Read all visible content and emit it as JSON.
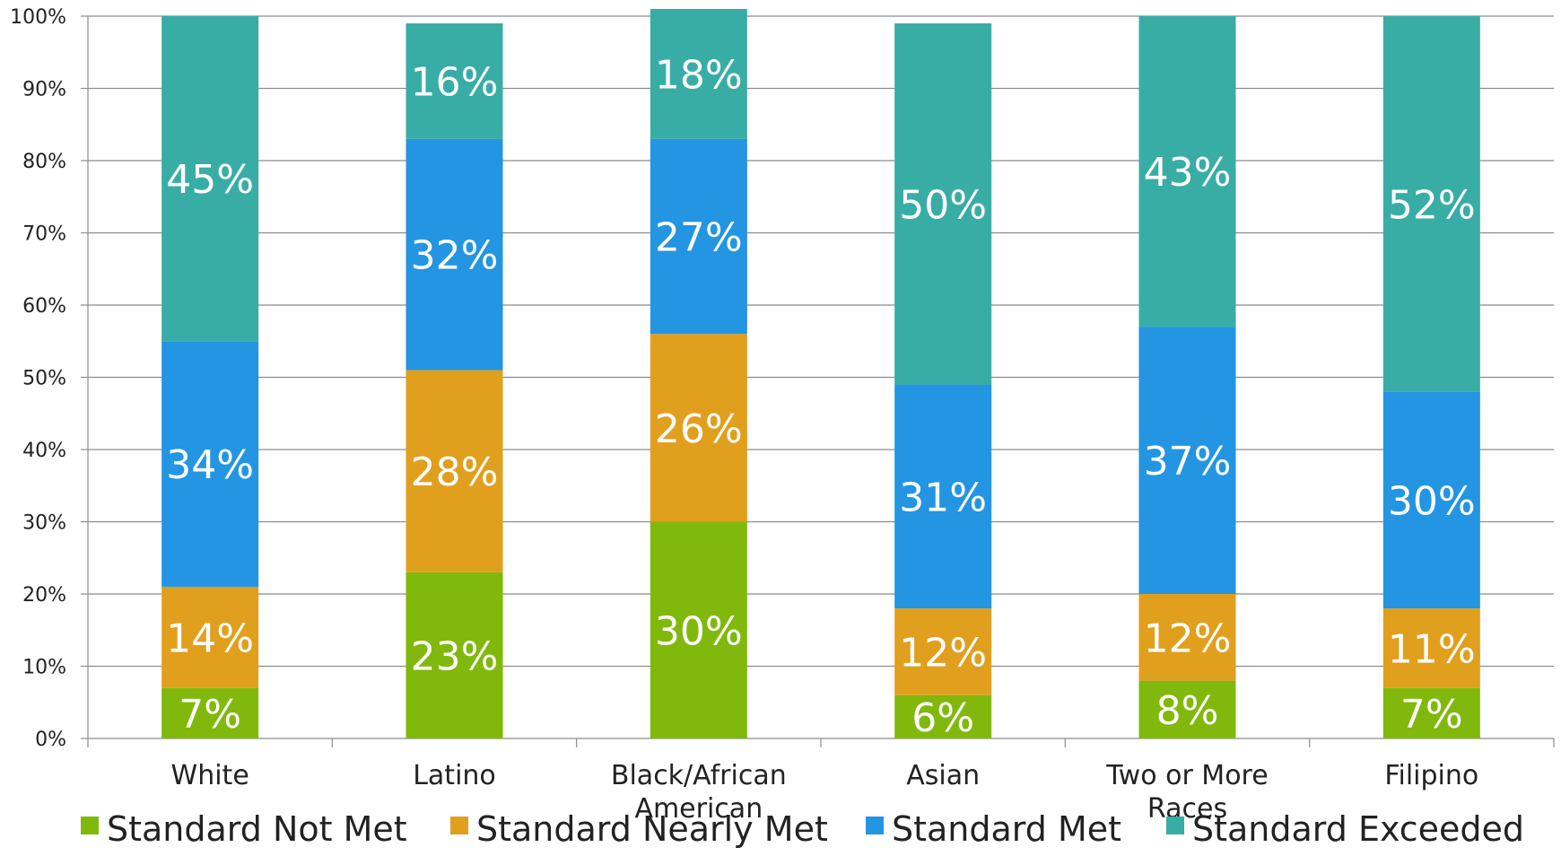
{
  "chart_data": {
    "type": "bar",
    "stacked": true,
    "categories": [
      "White",
      "Latino",
      "Black/African American",
      "Asian",
      "Two or More Races",
      "Filipino"
    ],
    "category_lines": [
      [
        "White"
      ],
      [
        "Latino"
      ],
      [
        "Black/African",
        "American"
      ],
      [
        "Asian"
      ],
      [
        "Two or More",
        "Races"
      ],
      [
        "Filipino"
      ]
    ],
    "series": [
      {
        "name": "Standard Not Met",
        "color": "#80b90b",
        "values": [
          7,
          23,
          30,
          6,
          8,
          7
        ]
      },
      {
        "name": "Standard Nearly Met",
        "color": "#e19f1e",
        "values": [
          14,
          28,
          26,
          12,
          12,
          11
        ]
      },
      {
        "name": "Standard Met",
        "color": "#2395e2",
        "values": [
          34,
          32,
          27,
          31,
          37,
          30
        ]
      },
      {
        "name": "Standard Exceeded",
        "color": "#38ada5",
        "values": [
          45,
          16,
          18,
          50,
          43,
          52
        ]
      }
    ],
    "ylim": [
      0,
      100
    ],
    "yticks": [
      "0%",
      "10%",
      "20%",
      "30%",
      "40%",
      "50%",
      "60%",
      "70%",
      "80%",
      "90%",
      "100%"
    ],
    "value_suffix": "%",
    "grid": true,
    "legend_position": "bottom"
  }
}
